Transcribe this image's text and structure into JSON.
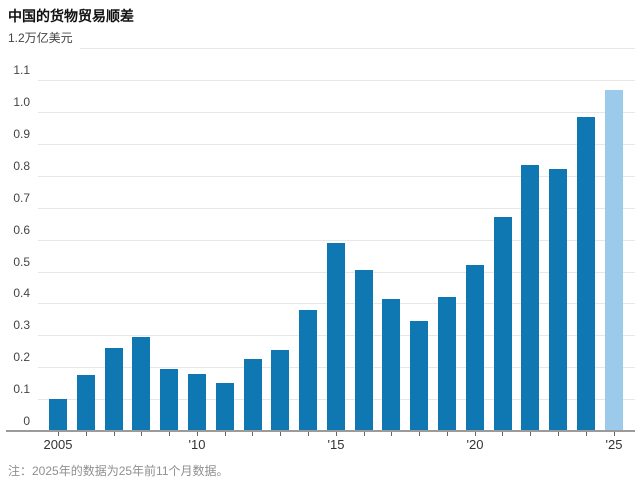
{
  "page": {
    "title": "中国的货物贸易顺差",
    "note": "注：2025年的数据为25年前11个月数据。"
  },
  "chart_data": {
    "type": "bar",
    "title": "中国的货物贸易顺差",
    "unit": "万亿美元",
    "categories": [
      2005,
      2006,
      2007,
      2008,
      2009,
      2010,
      2011,
      2012,
      2013,
      2014,
      2015,
      2016,
      2017,
      2018,
      2019,
      2020,
      2021,
      2022,
      2023,
      2024,
      2025
    ],
    "values": [
      0.1,
      0.175,
      0.26,
      0.295,
      0.195,
      0.18,
      0.15,
      0.225,
      0.255,
      0.38,
      0.59,
      0.505,
      0.415,
      0.345,
      0.42,
      0.52,
      0.67,
      0.835,
      0.82,
      0.985,
      1.07
    ],
    "highlight_last_bar": true,
    "ylim": [
      0,
      1.2
    ],
    "grid": true,
    "legend": null,
    "y_ticks": [
      {
        "v": 0,
        "label": "0"
      },
      {
        "v": 0.1,
        "label": "0.1"
      },
      {
        "v": 0.2,
        "label": "0.2"
      },
      {
        "v": 0.3,
        "label": "0.3"
      },
      {
        "v": 0.4,
        "label": "0.4"
      },
      {
        "v": 0.5,
        "label": "0.5"
      },
      {
        "v": 0.6,
        "label": "0.6"
      },
      {
        "v": 0.7,
        "label": "0.7"
      },
      {
        "v": 0.8,
        "label": "0.8"
      },
      {
        "v": 0.9,
        "label": "0.9"
      },
      {
        "v": 1.0,
        "label": "1.0"
      },
      {
        "v": 1.1,
        "label": "1.1"
      },
      {
        "v": 1.2,
        "label": "1.2万亿美元",
        "unit": true
      }
    ],
    "x_ticks": [
      {
        "year": 2005,
        "label": "2005"
      },
      {
        "year": 2010,
        "label": "'10"
      },
      {
        "year": 2015,
        "label": "'15"
      },
      {
        "year": 2020,
        "label": "'20"
      },
      {
        "year": 2025,
        "label": "'25"
      }
    ],
    "colors": {
      "bar": "#0f78b2",
      "bar_highlight": "#9ccaeb",
      "grid": "#e7e7e7",
      "axis": "#9b9b9b",
      "tick": "#666666",
      "text": "#333333",
      "note": "#8f8f8f"
    }
  }
}
